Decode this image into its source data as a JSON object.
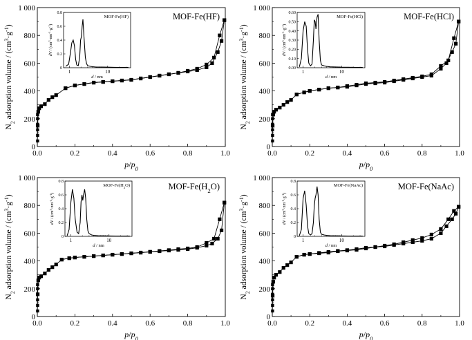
{
  "figure": {
    "panels_count": 4
  },
  "chart_data": [
    {
      "type": "line",
      "title": "MOF-Fe(HF)",
      "xlabel": "p/p0",
      "ylabel": "N2 adsorption volume / (cm3·g-1)",
      "xlim": [
        0,
        1
      ],
      "ylim": [
        0,
        1000
      ],
      "xticks": [
        0.0,
        0.2,
        0.4,
        0.6,
        0.8,
        1.0
      ],
      "yticks": [
        0,
        200,
        400,
        600,
        800,
        1000
      ],
      "xtick_labels": [
        "0.0",
        "0.2",
        "0.4",
        "0.6",
        "0.8",
        "1.0"
      ],
      "ytick_labels": [
        "0",
        "200",
        "400",
        "600",
        "800",
        "1 000"
      ],
      "marker": "square",
      "series": [
        {
          "name": "adsorption",
          "x": [
            0.002,
            0.005,
            0.01,
            0.02,
            0.04,
            0.06,
            0.08,
            0.1,
            0.15,
            0.2,
            0.25,
            0.3,
            0.35,
            0.4,
            0.45,
            0.5,
            0.55,
            0.6,
            0.65,
            0.7,
            0.75,
            0.8,
            0.85,
            0.9,
            0.93,
            0.96,
            0.98,
            0.995
          ],
          "y": [
            150,
            250,
            275,
            290,
            305,
            335,
            355,
            370,
            420,
            440,
            450,
            460,
            465,
            470,
            475,
            480,
            490,
            500,
            510,
            520,
            530,
            540,
            550,
            570,
            600,
            680,
            760,
            910
          ]
        },
        {
          "name": "desorption",
          "x": [
            0.995,
            0.97,
            0.94,
            0.9,
            0.85,
            0.8,
            0.75,
            0.7,
            0.65,
            0.6,
            0.55,
            0.5,
            0.45,
            0.4,
            0.35,
            0.3,
            0.25,
            0.2,
            0.15
          ],
          "y": [
            910,
            800,
            640,
            590,
            560,
            545,
            530,
            520,
            510,
            500,
            490,
            480,
            475,
            470,
            465,
            460,
            450,
            440,
            420
          ]
        }
      ],
      "inset": {
        "title": "MOF-Fe(HF)",
        "xlabel": "d / nm",
        "ylabel": "dV / (cm3·nm-1·g-1)",
        "xlim": [
          0.7,
          40
        ],
        "xscale": "log",
        "xticks": [
          1,
          10
        ],
        "xtick_labels": [
          "1",
          "10"
        ],
        "ylim": [
          0,
          0.8
        ],
        "yticks": [
          0,
          0.2,
          0.4,
          0.6,
          0.8
        ],
        "ytick_labels": [
          "0",
          "0.2",
          "0.4",
          "0.6",
          "0.8"
        ],
        "x": [
          0.8,
          0.95,
          1.05,
          1.15,
          1.25,
          1.35,
          1.45,
          1.55,
          1.7,
          1.85,
          1.95,
          2.05,
          2.15,
          2.25,
          2.4,
          2.6,
          2.8,
          3,
          3.5,
          4,
          5,
          7,
          10,
          15,
          25,
          35
        ],
        "y": [
          0.02,
          0.05,
          0.2,
          0.36,
          0.4,
          0.32,
          0.12,
          0.04,
          0.03,
          0.15,
          0.4,
          0.45,
          0.6,
          0.7,
          0.45,
          0.15,
          0.06,
          0.03,
          0.02,
          0.015,
          0.01,
          0.01,
          0.008,
          0.006,
          0.005,
          0.005
        ]
      }
    },
    {
      "type": "line",
      "title": "MOF-Fe(HCl)",
      "xlabel": "p/p0",
      "ylabel": "N2 adsorption volume / (cm3·g-1)",
      "xlim": [
        0,
        1
      ],
      "ylim": [
        0,
        1000
      ],
      "xticks": [
        0.0,
        0.2,
        0.4,
        0.6,
        0.8,
        1.0
      ],
      "yticks": [
        0,
        200,
        400,
        600,
        800,
        1000
      ],
      "xtick_labels": [
        "0.0",
        "0.2",
        "0.4",
        "0.6",
        "0.8",
        "1.0"
      ],
      "ytick_labels": [
        "0",
        "200",
        "400",
        "600",
        "800",
        "1 000"
      ],
      "marker": "square",
      "series": [
        {
          "name": "adsorption",
          "x": [
            0.002,
            0.005,
            0.01,
            0.02,
            0.04,
            0.06,
            0.08,
            0.1,
            0.13,
            0.17,
            0.2,
            0.25,
            0.3,
            0.35,
            0.4,
            0.45,
            0.5,
            0.55,
            0.6,
            0.65,
            0.7,
            0.75,
            0.8,
            0.85,
            0.9,
            0.93,
            0.96,
            0.98,
            0.995
          ],
          "y": [
            150,
            230,
            250,
            265,
            280,
            300,
            320,
            335,
            375,
            390,
            400,
            410,
            420,
            425,
            430,
            440,
            450,
            455,
            460,
            470,
            480,
            490,
            500,
            510,
            560,
            600,
            680,
            740,
            900
          ]
        },
        {
          "name": "desorption",
          "x": [
            0.995,
            0.97,
            0.94,
            0.9,
            0.85,
            0.8,
            0.75,
            0.7,
            0.65,
            0.6,
            0.55,
            0.5,
            0.45,
            0.4,
            0.35,
            0.3,
            0.25,
            0.2,
            0.17,
            0.13
          ],
          "y": [
            900,
            780,
            620,
            580,
            520,
            505,
            495,
            485,
            475,
            465,
            460,
            455,
            445,
            435,
            425,
            420,
            410,
            400,
            390,
            375
          ]
        }
      ],
      "inset": {
        "title": "MOF-Fe(HCl)",
        "xlabel": "d / nm",
        "ylabel": "dV / (cm3·nm-1·g-1)",
        "xlim": [
          0.7,
          40
        ],
        "xscale": "log",
        "xticks": [
          1,
          10
        ],
        "xtick_labels": [
          "1",
          "10"
        ],
        "ylim": [
          0,
          0.6
        ],
        "yticks": [
          0,
          0.1,
          0.2,
          0.3,
          0.4,
          0.5,
          0.6
        ],
        "ytick_labels": [
          "0.00",
          "0.10",
          "0.20",
          "0.30",
          "0.40",
          "0.50",
          "0.60"
        ],
        "x": [
          0.8,
          0.9,
          1.0,
          1.1,
          1.2,
          1.3,
          1.4,
          1.55,
          1.7,
          1.85,
          1.95,
          2.05,
          2.15,
          2.3,
          2.45,
          2.6,
          2.8,
          3,
          3.5,
          4,
          5,
          7,
          10,
          15,
          25,
          35
        ],
        "y": [
          0.01,
          0.1,
          0.4,
          0.5,
          0.45,
          0.2,
          0.05,
          0.02,
          0.04,
          0.3,
          0.52,
          0.5,
          0.42,
          0.55,
          0.58,
          0.3,
          0.08,
          0.03,
          0.02,
          0.015,
          0.01,
          0.008,
          0.006,
          0.005,
          0.004,
          0.004
        ]
      }
    },
    {
      "type": "line",
      "title": "MOF-Fe(H2O)",
      "xlabel": "p/p0",
      "ylabel": "N2 adsorption volume / (cm3·g-1)",
      "xlim": [
        0,
        1
      ],
      "ylim": [
        0,
        1000
      ],
      "xticks": [
        0.0,
        0.2,
        0.4,
        0.6,
        0.8,
        1.0
      ],
      "yticks": [
        0,
        200,
        400,
        600,
        800,
        1000
      ],
      "xtick_labels": [
        "0.0",
        "0.2",
        "0.4",
        "0.6",
        "0.8",
        "1.0"
      ],
      "ytick_labels": [
        "0",
        "200",
        "400",
        "600",
        "800",
        "1 000"
      ],
      "marker": "square",
      "series": [
        {
          "name": "adsorption",
          "x": [
            0.002,
            0.005,
            0.01,
            0.02,
            0.04,
            0.06,
            0.08,
            0.1,
            0.13,
            0.17,
            0.2,
            0.25,
            0.3,
            0.35,
            0.4,
            0.45,
            0.5,
            0.55,
            0.6,
            0.65,
            0.7,
            0.75,
            0.8,
            0.85,
            0.9,
            0.93,
            0.96,
            0.98,
            0.995
          ],
          "y": [
            160,
            260,
            280,
            290,
            310,
            335,
            355,
            375,
            410,
            420,
            425,
            430,
            435,
            440,
            445,
            450,
            455,
            460,
            465,
            470,
            475,
            480,
            485,
            495,
            510,
            525,
            560,
            620,
            820
          ]
        },
        {
          "name": "desorption",
          "x": [
            0.995,
            0.97,
            0.94,
            0.9,
            0.85,
            0.8,
            0.75,
            0.7,
            0.65,
            0.6,
            0.55,
            0.5,
            0.45,
            0.4,
            0.35,
            0.3,
            0.25,
            0.2,
            0.17,
            0.13
          ],
          "y": [
            820,
            700,
            560,
            530,
            500,
            490,
            485,
            478,
            472,
            466,
            460,
            455,
            450,
            445,
            440,
            435,
            430,
            425,
            420,
            410
          ]
        }
      ],
      "inset": {
        "title": "MOF-Fe(H2O)",
        "xlabel": "d / nm",
        "ylabel": "dV / (cm3·nm-1·g-1)",
        "xlim": [
          0.7,
          40
        ],
        "xscale": "log",
        "xticks": [
          1,
          10
        ],
        "xtick_labels": [
          "1",
          "10"
        ],
        "ylim": [
          0,
          0.8
        ],
        "yticks": [
          0,
          0.2,
          0.4,
          0.6,
          0.8
        ],
        "ytick_labels": [
          "0",
          "0.2",
          "0.4",
          "0.6",
          "0.8"
        ],
        "x": [
          0.8,
          0.9,
          1.0,
          1.1,
          1.2,
          1.3,
          1.45,
          1.6,
          1.75,
          1.85,
          1.95,
          2.05,
          2.15,
          2.3,
          2.45,
          2.6,
          2.8,
          3,
          3.5,
          4,
          5,
          7,
          10,
          15,
          25,
          35
        ],
        "y": [
          0.01,
          0.1,
          0.5,
          0.68,
          0.55,
          0.25,
          0.06,
          0.04,
          0.2,
          0.5,
          0.6,
          0.52,
          0.6,
          0.68,
          0.55,
          0.25,
          0.08,
          0.04,
          0.02,
          0.015,
          0.01,
          0.008,
          0.006,
          0.005,
          0.004,
          0.004
        ]
      }
    },
    {
      "type": "line",
      "title": "MOF-Fe(NaAc)",
      "xlabel": "p/p0",
      "ylabel": "N2 adsorption volume / (cm3·g-1)",
      "xlim": [
        0,
        1
      ],
      "ylim": [
        0,
        1000
      ],
      "xticks": [
        0.0,
        0.2,
        0.4,
        0.6,
        0.8,
        1.0
      ],
      "yticks": [
        0,
        200,
        400,
        600,
        800,
        1000
      ],
      "xtick_labels": [
        "0.0",
        "0.2",
        "0.4",
        "0.6",
        "0.8",
        "1.0"
      ],
      "ytick_labels": [
        "0",
        "200",
        "400",
        "600",
        "800",
        "1 000"
      ],
      "marker": "square",
      "series": [
        {
          "name": "adsorption",
          "x": [
            0.002,
            0.005,
            0.01,
            0.02,
            0.04,
            0.06,
            0.08,
            0.1,
            0.13,
            0.17,
            0.2,
            0.25,
            0.3,
            0.35,
            0.4,
            0.45,
            0.5,
            0.55,
            0.6,
            0.65,
            0.7,
            0.75,
            0.8,
            0.85,
            0.9,
            0.93,
            0.96,
            0.98,
            0.995
          ],
          "y": [
            150,
            250,
            280,
            300,
            320,
            350,
            370,
            390,
            430,
            445,
            450,
            455,
            460,
            470,
            475,
            480,
            490,
            500,
            505,
            515,
            525,
            535,
            545,
            560,
            600,
            650,
            700,
            740,
            790
          ]
        },
        {
          "name": "desorption",
          "x": [
            0.995,
            0.97,
            0.94,
            0.9,
            0.85,
            0.8,
            0.75,
            0.7,
            0.65,
            0.6,
            0.55,
            0.5,
            0.45,
            0.4,
            0.35,
            0.3,
            0.25,
            0.2,
            0.17,
            0.13
          ],
          "y": [
            790,
            760,
            700,
            630,
            590,
            565,
            550,
            535,
            520,
            510,
            500,
            495,
            485,
            478,
            472,
            465,
            458,
            450,
            445,
            430
          ]
        }
      ],
      "inset": {
        "title": "MOF-Fe(NaAc)",
        "xlabel": "d / nm",
        "ylabel": "dV / (cm3·nm-1·g-1)",
        "xlim": [
          0.7,
          40
        ],
        "xscale": "log",
        "xticks": [
          1,
          10
        ],
        "xtick_labels": [
          "1",
          "10"
        ],
        "ylim": [
          0,
          0.8
        ],
        "yticks": [
          0,
          0.2,
          0.4,
          0.6,
          0.8
        ],
        "ytick_labels": [
          "0",
          "0.2",
          "0.4",
          "0.6",
          "0.8"
        ],
        "x": [
          0.8,
          0.9,
          1.0,
          1.1,
          1.2,
          1.3,
          1.4,
          1.55,
          1.7,
          1.85,
          1.95,
          2.05,
          2.15,
          2.3,
          2.45,
          2.6,
          2.8,
          3,
          3.5,
          4,
          5,
          7,
          10,
          15,
          25,
          35
        ],
        "y": [
          0.01,
          0.1,
          0.55,
          0.66,
          0.45,
          0.15,
          0.04,
          0.02,
          0.04,
          0.2,
          0.45,
          0.55,
          0.6,
          0.72,
          0.6,
          0.25,
          0.06,
          0.03,
          0.02,
          0.015,
          0.01,
          0.008,
          0.006,
          0.005,
          0.004,
          0.004
        ]
      }
    }
  ]
}
